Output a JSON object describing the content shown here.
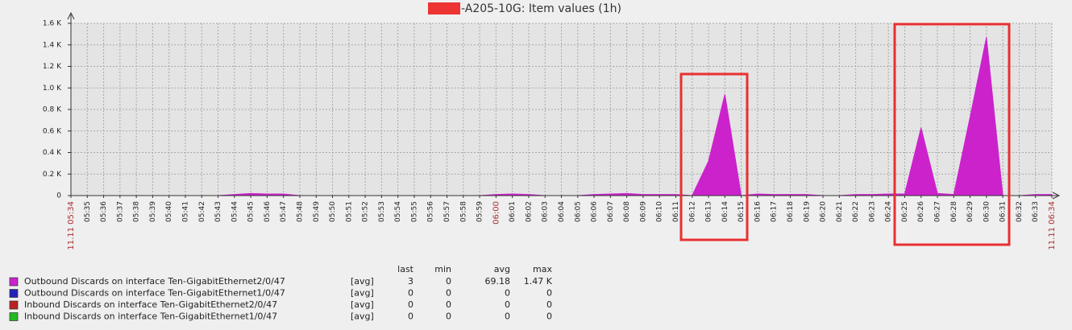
{
  "chart_data": {
    "type": "area",
    "title": "-A205-10G: Item values (1h)",
    "categories": [
      "11.11 05:34",
      "05:35",
      "05:36",
      "05:37",
      "05:38",
      "05:39",
      "05:40",
      "05:41",
      "05:42",
      "05:43",
      "05:44",
      "05:45",
      "05:46",
      "05:47",
      "05:48",
      "05:49",
      "05:50",
      "05:51",
      "05:52",
      "05:53",
      "05:54",
      "05:55",
      "05:56",
      "05:57",
      "05:58",
      "05:59",
      "06:00",
      "06:01",
      "06:02",
      "06:03",
      "06:04",
      "06:05",
      "06:06",
      "06:07",
      "06:08",
      "06:09",
      "06:10",
      "06:11",
      "06:12",
      "06:13",
      "06:14",
      "06:15",
      "06:16",
      "06:17",
      "06:18",
      "06:19",
      "06:20",
      "06:21",
      "06:22",
      "06:23",
      "06:24",
      "06:25",
      "06:26",
      "06:27",
      "06:28",
      "06:29",
      "06:30",
      "06:31",
      "06:32",
      "06:33",
      "11.11 06:34"
    ],
    "series": [
      {
        "name": "Outbound Discards on interface Ten-GigabitEthernet2/0/47",
        "color": "#cc22cc",
        "values": [
          0,
          0,
          0,
          0,
          0,
          0,
          0,
          0,
          0,
          0,
          10,
          20,
          15,
          15,
          0,
          0,
          0,
          0,
          0,
          0,
          0,
          0,
          0,
          0,
          0,
          0,
          10,
          15,
          10,
          0,
          0,
          0,
          10,
          15,
          20,
          10,
          10,
          10,
          0,
          320,
          940,
          0,
          15,
          10,
          10,
          10,
          0,
          0,
          10,
          10,
          15,
          15,
          630,
          20,
          10,
          730,
          1470,
          0,
          0,
          10,
          10
        ]
      },
      {
        "name": "Outbound Discards on interface Ten-GigabitEthernet1/0/47",
        "color": "#2222bb",
        "values": [
          0,
          0,
          0,
          0,
          0,
          0,
          0,
          0,
          0,
          0,
          0,
          0,
          0,
          0,
          0,
          0,
          0,
          0,
          0,
          0,
          0,
          0,
          0,
          0,
          0,
          0,
          0,
          0,
          0,
          0,
          0,
          0,
          0,
          0,
          0,
          0,
          0,
          0,
          0,
          0,
          0,
          0,
          0,
          0,
          0,
          0,
          0,
          0,
          0,
          0,
          0,
          0,
          0,
          0,
          0,
          0,
          0,
          0,
          0,
          0,
          0
        ]
      },
      {
        "name": "Inbound Discards on interface Ten-GigabitEthernet2/0/47",
        "color": "#bb2222",
        "values": [
          0,
          0,
          0,
          0,
          0,
          0,
          0,
          0,
          0,
          0,
          0,
          0,
          0,
          0,
          0,
          0,
          0,
          0,
          0,
          0,
          0,
          0,
          0,
          0,
          0,
          0,
          0,
          0,
          0,
          0,
          0,
          0,
          0,
          0,
          0,
          0,
          0,
          0,
          0,
          0,
          0,
          0,
          0,
          0,
          0,
          0,
          0,
          0,
          0,
          0,
          0,
          0,
          0,
          0,
          0,
          0,
          0,
          0,
          0,
          0,
          0
        ]
      },
      {
        "name": "Inbound Discards on interface Ten-GigabitEthernet1/0/47",
        "color": "#22bb22",
        "values": [
          0,
          0,
          0,
          0,
          0,
          0,
          0,
          0,
          0,
          0,
          0,
          0,
          0,
          0,
          0,
          0,
          0,
          0,
          0,
          0,
          0,
          0,
          0,
          0,
          0,
          0,
          0,
          0,
          0,
          0,
          0,
          0,
          0,
          0,
          0,
          0,
          0,
          0,
          0,
          0,
          0,
          0,
          0,
          0,
          0,
          0,
          0,
          0,
          0,
          0,
          0,
          0,
          0,
          0,
          0,
          0,
          0,
          0,
          0,
          0,
          0
        ]
      }
    ],
    "ylim": [
      0,
      1600
    ],
    "yticks": [
      0,
      {
        "value": 200,
        "label": "0.2 K"
      },
      {
        "value": 400,
        "label": "0.4 K"
      },
      {
        "value": 600,
        "label": "0.6 K"
      },
      {
        "value": 800,
        "label": "0.8 K"
      },
      {
        "value": 1000,
        "label": "1.0 K"
      },
      {
        "value": 1200,
        "label": "1.2 K"
      },
      {
        "value": 1400,
        "label": "1.4 K"
      },
      {
        "value": 1600,
        "label": "1.6 K"
      }
    ],
    "grid": true,
    "legend_stats": {
      "headers": [
        "last",
        "min",
        "avg",
        "max"
      ],
      "rows": [
        {
          "func": "[avg]",
          "stats": [
            3,
            0,
            69.18,
            {
              "value": 1470,
              "label": "1.47 K"
            }
          ]
        },
        {
          "func": "[avg]",
          "stats": [
            0,
            0,
            0,
            0
          ]
        },
        {
          "func": "[avg]",
          "stats": [
            0,
            0,
            0,
            0
          ]
        },
        {
          "func": "[avg]",
          "stats": [
            0,
            0,
            0,
            0
          ]
        }
      ]
    }
  }
}
